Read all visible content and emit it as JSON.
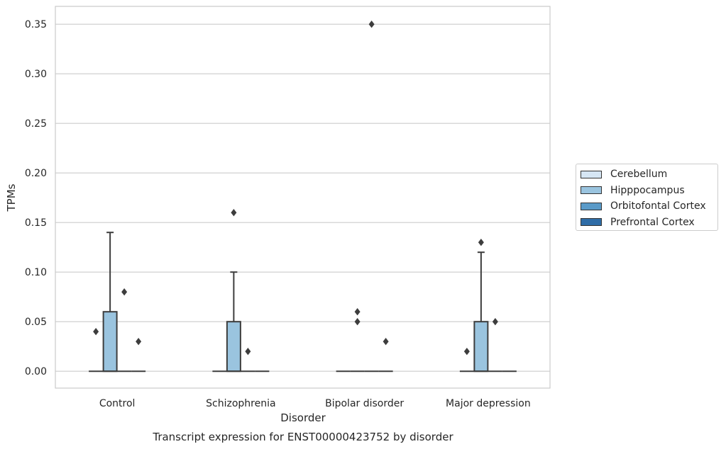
{
  "chart_data": {
    "type": "box",
    "title": "",
    "caption": "Transcript expression for ENST00000423752 by disorder",
    "xlabel": "Disorder",
    "ylabel": "TPMs",
    "ylim": [
      -0.017,
      0.368
    ],
    "yticks": [
      "0.00",
      "0.05",
      "0.10",
      "0.15",
      "0.20",
      "0.25",
      "0.30",
      "0.35"
    ],
    "grid": true,
    "legend_position": "right",
    "categories": [
      "Control",
      "Schizophrenia",
      "Bipolar disorder",
      "Major depression"
    ],
    "series": [
      {
        "name": "Cerebellum",
        "color": "#d6e6f4",
        "boxes": [
          {
            "q1": 0,
            "median": 0,
            "q3": 0,
            "whisker_low": 0,
            "whisker_high": 0,
            "outliers": [
              0.04
            ]
          },
          {
            "q1": 0,
            "median": 0,
            "q3": 0,
            "whisker_low": 0,
            "whisker_high": 0,
            "outliers": []
          },
          {
            "q1": 0,
            "median": 0,
            "q3": 0,
            "whisker_low": 0,
            "whisker_high": 0,
            "outliers": []
          },
          {
            "q1": 0,
            "median": 0,
            "q3": 0,
            "whisker_low": 0,
            "whisker_high": 0,
            "outliers": [
              0.02
            ]
          }
        ]
      },
      {
        "name": "Hipppocampus",
        "color": "#9ac4df",
        "boxes": [
          {
            "q1": 0,
            "median": 0,
            "q3": 0.06,
            "whisker_low": 0,
            "whisker_high": 0.14,
            "outliers": []
          },
          {
            "q1": 0,
            "median": 0,
            "q3": 0.05,
            "whisker_low": 0,
            "whisker_high": 0.1,
            "outliers": [
              0.16
            ]
          },
          {
            "q1": 0,
            "median": 0,
            "q3": 0,
            "whisker_low": 0,
            "whisker_high": 0,
            "outliers": [
              0.06,
              0.05
            ]
          },
          {
            "q1": 0,
            "median": 0,
            "q3": 0.05,
            "whisker_low": 0,
            "whisker_high": 0.12,
            "outliers": [
              0.13
            ]
          }
        ]
      },
      {
        "name": "Orbitofontal Cortex",
        "color": "#5a9ac8",
        "boxes": [
          {
            "q1": 0,
            "median": 0,
            "q3": 0,
            "whisker_low": 0,
            "whisker_high": 0,
            "outliers": [
              0.08
            ]
          },
          {
            "q1": 0,
            "median": 0,
            "q3": 0,
            "whisker_low": 0,
            "whisker_high": 0,
            "outliers": [
              0.02
            ]
          },
          {
            "q1": 0,
            "median": 0,
            "q3": 0,
            "whisker_low": 0,
            "whisker_high": 0,
            "outliers": [
              0.35
            ]
          },
          {
            "q1": 0,
            "median": 0,
            "q3": 0,
            "whisker_low": 0,
            "whisker_high": 0,
            "outliers": [
              0.05
            ]
          }
        ]
      },
      {
        "name": "Prefrontal Cortex",
        "color": "#2f6da7",
        "boxes": [
          {
            "q1": 0,
            "median": 0,
            "q3": 0,
            "whisker_low": 0,
            "whisker_high": 0,
            "outliers": [
              0.03
            ]
          },
          {
            "q1": 0,
            "median": 0,
            "q3": 0,
            "whisker_low": 0,
            "whisker_high": 0,
            "outliers": []
          },
          {
            "q1": 0,
            "median": 0,
            "q3": 0,
            "whisker_low": 0,
            "whisker_high": 0,
            "outliers": [
              0.03
            ]
          },
          {
            "q1": 0,
            "median": 0,
            "q3": 0,
            "whisker_low": 0,
            "whisker_high": 0,
            "outliers": []
          }
        ]
      }
    ]
  }
}
